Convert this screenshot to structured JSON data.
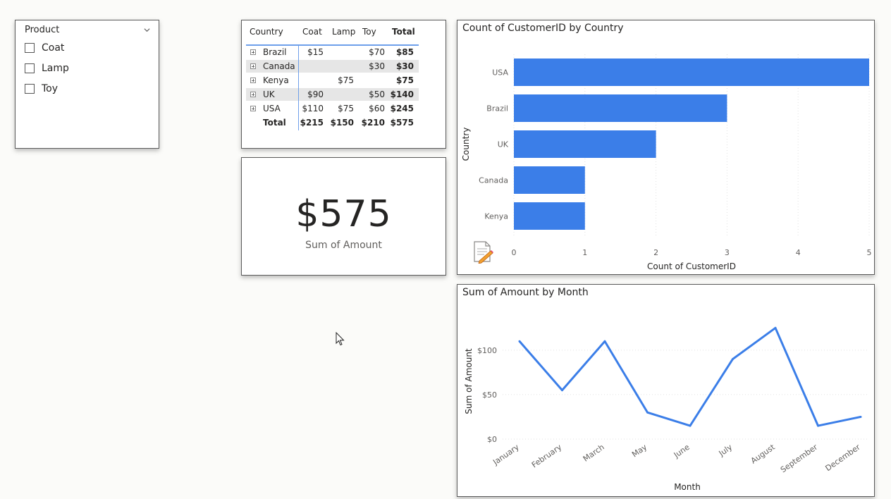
{
  "slicer": {
    "title": "Product",
    "items": [
      {
        "label": "Coat",
        "checked": false
      },
      {
        "label": "Lamp",
        "checked": false
      },
      {
        "label": "Toy",
        "checked": false
      }
    ]
  },
  "matrix": {
    "headers": [
      "Country",
      "Coat",
      "Lamp",
      "Toy",
      "Total"
    ],
    "rows": [
      {
        "country": "Brazil",
        "coat": "$15",
        "lamp": "",
        "toy": "$70",
        "total": "$85"
      },
      {
        "country": "Canada",
        "coat": "",
        "lamp": "",
        "toy": "$30",
        "total": "$30"
      },
      {
        "country": "Kenya",
        "coat": "",
        "lamp": "$75",
        "toy": "",
        "total": "$75"
      },
      {
        "country": "UK",
        "coat": "$90",
        "lamp": "",
        "toy": "$50",
        "total": "$140"
      },
      {
        "country": "USA",
        "coat": "$110",
        "lamp": "$75",
        "toy": "$60",
        "total": "$245"
      }
    ],
    "total_row": {
      "label": "Total",
      "coat": "$215",
      "lamp": "$150",
      "toy": "$210",
      "total": "$575"
    }
  },
  "kpi": {
    "value": "$575",
    "label": "Sum of Amount"
  },
  "bar_chart_title": "Count of CustomerID by Country",
  "line_chart_title": "Sum of Amount by Month",
  "chart_data": [
    {
      "type": "bar",
      "orientation": "horizontal",
      "title": "Count of CustomerID by Country",
      "categories": [
        "USA",
        "Brazil",
        "UK",
        "Canada",
        "Kenya"
      ],
      "values": [
        5,
        3,
        2,
        1,
        1
      ],
      "xlabel": "Count of CustomerID",
      "ylabel": "Country",
      "xlim": [
        0,
        5
      ],
      "xticks": [
        "0",
        "1",
        "2",
        "3",
        "4",
        "5"
      ],
      "grid": true,
      "color": "#3b7ee8"
    },
    {
      "type": "line",
      "title": "Sum of Amount by Month",
      "x": [
        "January",
        "February",
        "March",
        "May",
        "June",
        "July",
        "August",
        "September",
        "December"
      ],
      "values": [
        110,
        55,
        110,
        30,
        15,
        90,
        125,
        15,
        25
      ],
      "xlabel": "Month",
      "ylabel": "Sum of Amount",
      "ylim": [
        0,
        130
      ],
      "yticks": [
        {
          "value": 0,
          "label": "$0"
        },
        {
          "value": 50,
          "label": "$50"
        },
        {
          "value": 100,
          "label": "$100"
        }
      ],
      "grid": true,
      "color": "#3b7ee8"
    }
  ]
}
